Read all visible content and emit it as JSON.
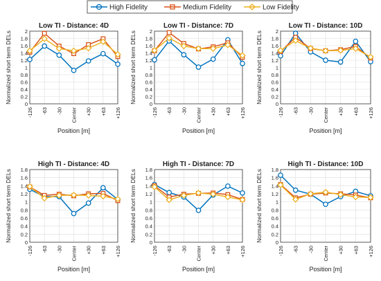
{
  "legend": {
    "entries": [
      {
        "label": "High Fidelity",
        "color": "#0072BD",
        "marker": "circle"
      },
      {
        "label": "Medium Fidelity",
        "color": "#D95319",
        "marker": "square"
      },
      {
        "label": "Low Fidelity",
        "color": "#EDB120",
        "marker": "diamond"
      }
    ]
  },
  "chart_data": [
    {
      "type": "line",
      "title": "Low TI - Distance: 4D",
      "xlabel": "Position [m]",
      "ylabel": "Normalized short term DELs",
      "categories": [
        "-126",
        "-63",
        "-30",
        "Center",
        "+30",
        "+63",
        "+126"
      ],
      "ylim": [
        0,
        2
      ],
      "yticks": [
        0,
        0.2,
        0.4,
        0.6,
        0.8,
        1,
        1.2,
        1.4,
        1.6,
        1.8,
        2
      ],
      "ytick_labels": [
        "0",
        "0.2",
        "0.4",
        "0.6",
        "0.8",
        "1",
        "1.2",
        "1.4",
        "1.6",
        "1.8",
        "2"
      ],
      "grid": true,
      "series": [
        {
          "name": "High Fidelity",
          "values": [
            1.22,
            1.59,
            1.34,
            0.92,
            1.18,
            1.38,
            1.09
          ]
        },
        {
          "name": "Medium Fidelity",
          "values": [
            1.42,
            1.94,
            1.59,
            1.38,
            1.63,
            1.79,
            1.3
          ]
        },
        {
          "name": "Low Fidelity",
          "values": [
            1.46,
            1.79,
            1.52,
            1.46,
            1.53,
            1.71,
            1.36
          ]
        }
      ]
    },
    {
      "type": "line",
      "title": "Low TI - Distance: 7D",
      "xlabel": "Position [m]",
      "ylabel": "Normalized short term DELs",
      "categories": [
        "-126",
        "-63",
        "-30",
        "Center",
        "+30",
        "+63",
        "+126"
      ],
      "ylim": [
        0,
        2
      ],
      "yticks": [
        0,
        0.2,
        0.4,
        0.6,
        0.8,
        1,
        1.2,
        1.4,
        1.6,
        1.8,
        2
      ],
      "ytick_labels": [
        "0",
        "0.2",
        "0.4",
        "0.6",
        "0.8",
        "1",
        "1.2",
        "1.4",
        "1.6",
        "1.8",
        "2"
      ],
      "grid": true,
      "series": [
        {
          "name": "High Fidelity",
          "values": [
            1.21,
            1.73,
            1.35,
            1.01,
            1.23,
            1.76,
            1.11
          ]
        },
        {
          "name": "Medium Fidelity",
          "values": [
            1.46,
            1.96,
            1.66,
            1.51,
            1.57,
            1.68,
            1.28
          ]
        },
        {
          "name": "Low Fidelity",
          "values": [
            1.47,
            1.81,
            1.59,
            1.52,
            1.52,
            1.62,
            1.33
          ]
        }
      ]
    },
    {
      "type": "line",
      "title": "Low TI - Distance: 10D",
      "xlabel": "Position [m]",
      "ylabel": "Normalized short term DELs",
      "categories": [
        "-126",
        "-63",
        "-30",
        "Center",
        "+30",
        "+63",
        "+126"
      ],
      "ylim": [
        0,
        2
      ],
      "yticks": [
        0,
        0.2,
        0.4,
        0.6,
        0.8,
        1,
        1.2,
        1.4,
        1.6,
        1.8,
        2
      ],
      "ytick_labels": [
        "0",
        "0.2",
        "0.4",
        "0.6",
        "0.8",
        "1",
        "1.2",
        "1.4",
        "1.6",
        "1.8",
        "2"
      ],
      "grid": true,
      "series": [
        {
          "name": "High Fidelity",
          "values": [
            1.32,
            1.94,
            1.43,
            1.2,
            1.15,
            1.72,
            1.16
          ]
        },
        {
          "name": "Medium Fidelity",
          "values": [
            1.44,
            1.83,
            1.52,
            1.46,
            1.49,
            1.58,
            1.26
          ]
        },
        {
          "name": "Low Fidelity",
          "values": [
            1.47,
            1.74,
            1.53,
            1.46,
            1.47,
            1.52,
            1.29
          ]
        }
      ]
    },
    {
      "type": "line",
      "title": "High TI - Distance: 4D",
      "xlabel": "Position [m]",
      "ylabel": "Normalized short term DELs",
      "categories": [
        "-126",
        "-63",
        "-30",
        "Center",
        "+30",
        "+63",
        "+126"
      ],
      "ylim": [
        0,
        1.8
      ],
      "yticks": [
        0,
        0.2,
        0.4,
        0.6,
        0.8,
        1,
        1.2,
        1.4,
        1.6,
        1.8
      ],
      "ytick_labels": [
        "0",
        "0.2",
        "0.4",
        "0.6",
        "0.8",
        "1",
        "1.2",
        "1.4",
        "1.6",
        "1.8"
      ],
      "grid": true,
      "series": [
        {
          "name": "High Fidelity",
          "values": [
            1.31,
            1.13,
            1.13,
            0.71,
            0.97,
            1.35,
            1.06
          ]
        },
        {
          "name": "Medium Fidelity",
          "values": [
            1.37,
            1.16,
            1.19,
            1.15,
            1.2,
            1.21,
            1.03
          ]
        },
        {
          "name": "Low Fidelity",
          "values": [
            1.38,
            1.09,
            1.16,
            1.17,
            1.16,
            1.14,
            1.07
          ]
        }
      ]
    },
    {
      "type": "line",
      "title": "High TI - Distance: 7D",
      "xlabel": "Position [m]",
      "ylabel": "Normalized short term DELs",
      "categories": [
        "-126",
        "-63",
        "-30",
        "Center",
        "+30",
        "+63",
        "+126"
      ],
      "ylim": [
        0,
        1.8
      ],
      "yticks": [
        0,
        0.2,
        0.4,
        0.6,
        0.8,
        1,
        1.2,
        1.4,
        1.6,
        1.8
      ],
      "ytick_labels": [
        "0",
        "0.2",
        "0.4",
        "0.6",
        "0.8",
        "1",
        "1.2",
        "1.4",
        "1.6",
        "1.8"
      ],
      "grid": true,
      "series": [
        {
          "name": "High Fidelity",
          "values": [
            1.43,
            1.23,
            1.12,
            0.79,
            1.17,
            1.39,
            1.22
          ]
        },
        {
          "name": "Medium Fidelity",
          "values": [
            1.4,
            1.12,
            1.19,
            1.21,
            1.22,
            1.18,
            1.06
          ]
        },
        {
          "name": "Low Fidelity",
          "values": [
            1.37,
            1.05,
            1.16,
            1.22,
            1.19,
            1.12,
            1.05
          ]
        }
      ]
    },
    {
      "type": "line",
      "title": "High TI - Distance: 10D",
      "xlabel": "Position [m]",
      "ylabel": "Normalized short term DELs",
      "categories": [
        "-126",
        "-63",
        "-30",
        "Center",
        "+30",
        "+63",
        "+126"
      ],
      "ylim": [
        0,
        1.8
      ],
      "yticks": [
        0,
        0.2,
        0.4,
        0.6,
        0.8,
        1,
        1.2,
        1.4,
        1.6,
        1.8
      ],
      "ytick_labels": [
        "0",
        "0.2",
        "0.4",
        "0.6",
        "0.8",
        "1",
        "1.2",
        "1.4",
        "1.6",
        "1.8"
      ],
      "grid": true,
      "series": [
        {
          "name": "High Fidelity",
          "values": [
            1.66,
            1.29,
            1.19,
            0.94,
            1.13,
            1.26,
            1.15
          ]
        },
        {
          "name": "Medium Fidelity",
          "values": [
            1.43,
            1.1,
            1.19,
            1.22,
            1.2,
            1.17,
            1.1
          ]
        },
        {
          "name": "Low Fidelity",
          "values": [
            1.42,
            1.06,
            1.2,
            1.24,
            1.18,
            1.12,
            1.11
          ]
        }
      ]
    }
  ]
}
